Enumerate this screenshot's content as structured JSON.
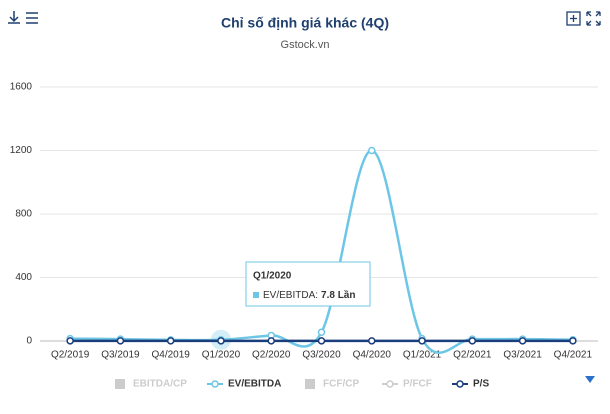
{
  "chart_data": {
    "type": "line",
    "title": "Chỉ số định giá khác (4Q)",
    "subtitle": "Gstock.vn",
    "categories": [
      "Q2/2019",
      "Q3/2019",
      "Q4/2019",
      "Q1/2020",
      "Q2/2020",
      "Q3/2020",
      "Q4/2020",
      "Q1/2021",
      "Q2/2021",
      "Q3/2021",
      "Q4/2021"
    ],
    "series": [
      {
        "name": "EBITDA/CP",
        "color": "#cccccc",
        "symbol": "square",
        "visible": false,
        "values": [
          null,
          null,
          null,
          null,
          null,
          null,
          null,
          null,
          null,
          null,
          null
        ]
      },
      {
        "name": "EV/EBITDA",
        "color": "#6ec6e6",
        "symbol": "line",
        "visible": true,
        "values": [
          15,
          12,
          7,
          7.8,
          35,
          55,
          1200,
          15,
          12,
          12,
          8
        ]
      },
      {
        "name": "FCF/CP",
        "color": "#cccccc",
        "symbol": "square",
        "visible": false,
        "values": [
          null,
          null,
          null,
          null,
          null,
          null,
          null,
          null,
          null,
          null,
          null
        ]
      },
      {
        "name": "P/FCF",
        "color": "#cccccc",
        "symbol": "line",
        "visible": false,
        "values": [
          null,
          null,
          null,
          null,
          null,
          null,
          null,
          null,
          null,
          null,
          null
        ]
      },
      {
        "name": "P/S",
        "color": "#1a3d7c",
        "symbol": "line",
        "visible": true,
        "values": [
          1,
          1,
          1,
          1,
          1,
          1,
          1,
          1,
          1,
          1,
          1
        ]
      }
    ],
    "ylim": [
      0,
      1600
    ],
    "yticks": [
      0,
      400,
      800,
      1200,
      1600
    ],
    "grid": true,
    "tooltip": {
      "title": "Q1/2020",
      "label": "EV/EBITDA:",
      "value": "7.8 Lần"
    }
  }
}
